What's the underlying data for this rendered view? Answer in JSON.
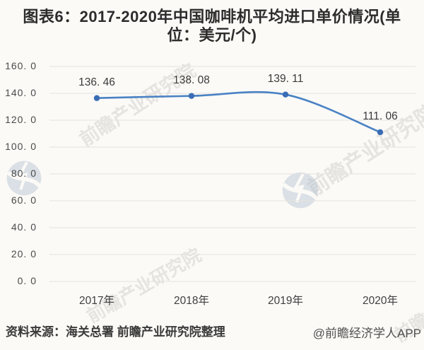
{
  "header": {
    "title": "图表6：2017-2020年中国咖啡机平均进口单价情况(单位：美元/个)",
    "title_lines": [
      "图表6：2017-2020年中国咖啡机平均进口单价情况(单",
      "位：美元/个)"
    ]
  },
  "chart_data": {
    "type": "line",
    "title": "图表6：2017-2020年中国咖啡机平均进口单价情况(单位：美元/个)",
    "unit": "美元/个",
    "categories": [
      "2017年",
      "2018年",
      "2019年",
      "2020年"
    ],
    "values": [
      136.46,
      138.08,
      139.11,
      111.06
    ],
    "point_labels": [
      "136. 46",
      "138. 08",
      "139. 11",
      "111. 06"
    ],
    "ytick_labels": [
      "0. 0",
      "20. 0",
      "40. 0",
      "60. 0",
      "80. 0",
      "100. 0",
      "120. 0",
      "140. 0",
      "160. 0"
    ],
    "ylim": [
      0,
      160
    ],
    "ytick_step": 20,
    "grid": true,
    "legend": "none",
    "smooth": true,
    "line_color": "#4a82c4",
    "marker_color": "#3b6db5",
    "gridline_color": "#e5e3df",
    "background_color": "#fbfaf7"
  },
  "watermark": {
    "text": "前瞻产业研究院",
    "logo_name": "qianzhan-logo"
  },
  "footer": {
    "source": "资料来源：海关总署 前瞻产业研究院整理",
    "credit": "@前瞻经济学人APP"
  }
}
